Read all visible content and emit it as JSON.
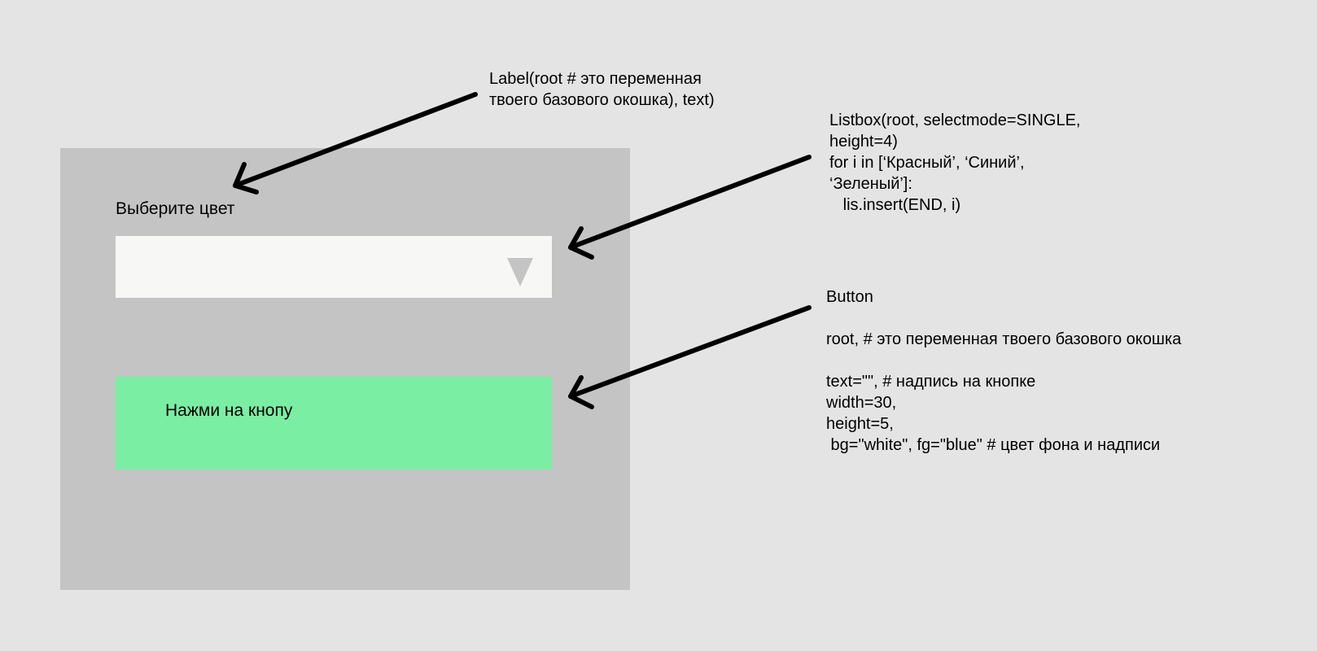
{
  "mockup": {
    "label_text": "Выберите цвет",
    "button_text": "Нажми на кнопу"
  },
  "annotations": {
    "label_note": "Label(root # это переменная\nтвоего базового окошка), text)",
    "listbox_note": "Listbox(root, selectmode=SINGLE,\nheight=4)\nfor i in [‘Красный’, ‘Синий’,\n‘Зеленый’]:\n   lis.insert(END, i)",
    "button_note": "Button\n\nroot, # это переменная твоего базового окошка\n\ntext=\"\", # надпись на кнопке\nwidth=30,\nheight=5,\n bg=\"white\", fg=\"blue\" # цвет фона и надписи"
  },
  "colors": {
    "page_background": "#e4e4e4",
    "window_background": "#c4c4c4",
    "combobox_background": "#f7f7f5",
    "button_background": "#7aeea3",
    "arrow": "#000000"
  },
  "icons": {
    "dropdown": "triangle-down-icon"
  }
}
